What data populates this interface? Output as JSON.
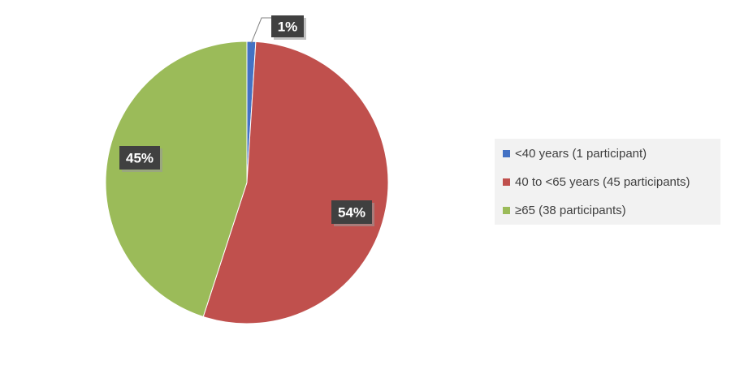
{
  "chart_data": {
    "type": "pie",
    "title": "",
    "slices": [
      {
        "label": "<40 years (1 participant)",
        "value": 1,
        "percent_label": "1%",
        "color": "#4472c4"
      },
      {
        "label": "40 to <65 years (45 participants)",
        "value": 54,
        "percent_label": "54%",
        "color": "#c0504d"
      },
      {
        "label": "≥65 (38 participants)",
        "value": 45,
        "percent_label": "45%",
        "color": "#9bbb59"
      }
    ],
    "legend_position": "right",
    "label_style": {
      "background": "#404040",
      "text_color": "#ffffff"
    }
  }
}
